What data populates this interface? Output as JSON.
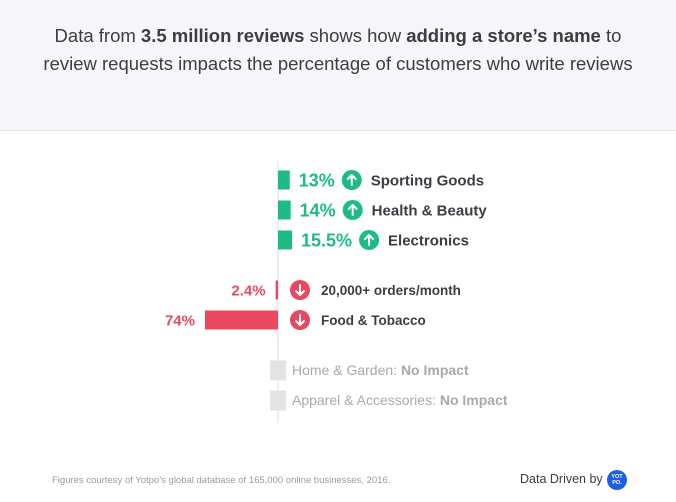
{
  "headline": {
    "p1": "Data from ",
    "b1": "3.5 million reviews",
    "p2": " shows how ",
    "b2": "adding a store’s name",
    "p3": " to review requests impacts the percentage of customers who write reviews"
  },
  "chart_data": {
    "type": "bar",
    "orientation": "diverging-horizontal",
    "rows": [
      {
        "category": "Sporting Goods",
        "value": 13,
        "label": "13%",
        "direction": "up"
      },
      {
        "category": "Health & Beauty",
        "value": 14,
        "label": "14%",
        "direction": "up"
      },
      {
        "category": "Electronics",
        "value": 15.5,
        "label": "15.5%",
        "direction": "up"
      },
      {
        "category": "20,000+ orders/month",
        "value": -2.4,
        "label": "2.4%",
        "direction": "down"
      },
      {
        "category": "Food & Tobacco",
        "value": -74,
        "label": "74%",
        "direction": "down"
      },
      {
        "category": "Home & Garden:",
        "value": 0,
        "label": "No Impact",
        "direction": "none"
      },
      {
        "category": "Apparel & Accessories:",
        "value": 0,
        "label": "No Impact",
        "direction": "none"
      }
    ],
    "colors": {
      "positive": "#1dbb85",
      "negative": "#ea4760",
      "neutral": "#e3e3e6",
      "axis": "#dcdce0"
    }
  },
  "footer": {
    "note": "Figures courtesy of Yotpo’s global database of 165,000 online businesses, 2016.",
    "brand_label": "Data Driven by",
    "logo_top": "YOT",
    "logo_bottom": "PO."
  }
}
